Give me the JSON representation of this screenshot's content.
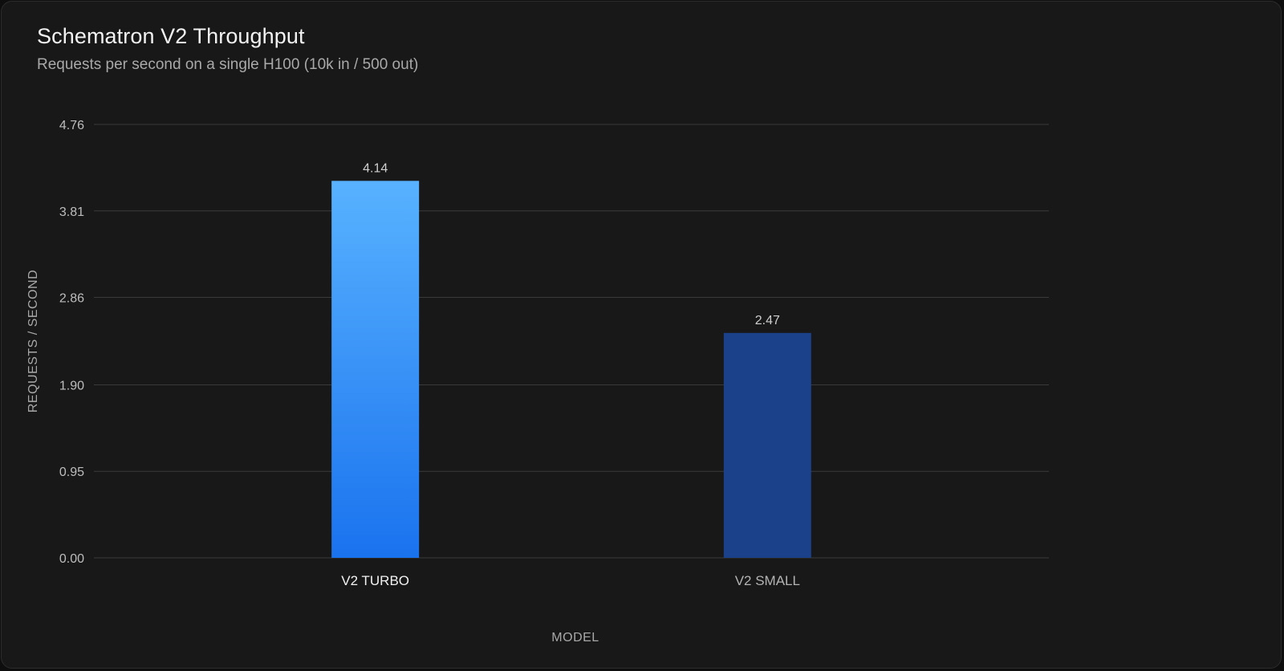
{
  "chart": {
    "title": "Schematron V2 Throughput",
    "subtitle": "Requests per second on a single H100 (10k in / 500 out)"
  },
  "chart_data": {
    "type": "bar",
    "title": "Schematron V2 Throughput",
    "subtitle": "Requests per second on a single H100 (10k in / 500 out)",
    "xlabel": "MODEL",
    "ylabel": "REQUESTS / SECOND",
    "categories": [
      "V2 TURBO",
      "V2 SMALL"
    ],
    "values": [
      4.14,
      2.47
    ],
    "data_labels": [
      "4.14",
      "2.47"
    ],
    "yticks": [
      "0.00",
      "0.95",
      "1.90",
      "2.86",
      "3.81",
      "4.76"
    ],
    "ylim": [
      0,
      4.76
    ],
    "grid": true,
    "legend": "none",
    "bar_colors": [
      {
        "top": "#58b2ff",
        "bottom": "#1a73ee"
      },
      {
        "top": "#1a4189",
        "bottom": "#1a4189"
      }
    ],
    "tick_label_colors": [
      "#f2f2f2",
      "#b3b3b3"
    ]
  }
}
